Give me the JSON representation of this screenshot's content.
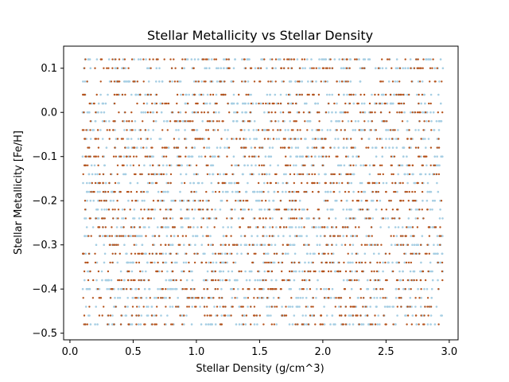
{
  "chart_data": {
    "type": "scatter",
    "title": "Stellar Metallicity vs Stellar Density",
    "xlabel": "Stellar Density (g/cm^3)",
    "ylabel": "Stellar Metallicity [Fe/H]",
    "xlim": [
      -0.05,
      3.07
    ],
    "ylim": [
      -0.515,
      0.15
    ],
    "xticks": [
      0.0,
      0.5,
      1.0,
      1.5,
      2.0,
      2.5,
      3.0
    ],
    "xtick_labels": [
      "0.0",
      "0.5",
      "1.0",
      "1.5",
      "2.0",
      "2.5",
      "3.0"
    ],
    "yticks": [
      -0.5,
      -0.4,
      -0.3,
      -0.2,
      -0.1,
      0.0,
      0.1
    ],
    "yticks_labels": [
      "−0.5",
      "−0.4",
      "−0.3",
      "−0.2",
      "−0.1",
      "0.0",
      "0.1"
    ],
    "grid": false,
    "legend": "none",
    "series": [
      {
        "color": "#a6cee3",
        "x_range": [
          0.1,
          2.95
        ],
        "y_levels": [
          0.12,
          0.1,
          0.07,
          0.04,
          0.02,
          0.0,
          -0.02,
          -0.04,
          -0.06,
          -0.08,
          -0.1,
          -0.12,
          -0.14,
          -0.16,
          -0.18,
          -0.2,
          -0.22,
          -0.24,
          -0.26,
          -0.28,
          -0.3,
          -0.32,
          -0.34,
          -0.36,
          -0.38,
          -0.4,
          -0.42,
          -0.44,
          -0.46,
          -0.48
        ],
        "points_per_level": 70,
        "marker": "circle"
      },
      {
        "color": "#b5531c",
        "x_range": [
          0.1,
          2.95
        ],
        "y_levels": [
          0.12,
          0.1,
          0.07,
          0.04,
          0.02,
          0.0,
          -0.02,
          -0.04,
          -0.06,
          -0.08,
          -0.1,
          -0.12,
          -0.14,
          -0.16,
          -0.18,
          -0.2,
          -0.22,
          -0.24,
          -0.26,
          -0.28,
          -0.3,
          -0.32,
          -0.34,
          -0.36,
          -0.38,
          -0.4,
          -0.42,
          -0.44,
          -0.46,
          -0.48
        ],
        "points_per_level": 55,
        "marker": "circle"
      }
    ]
  }
}
